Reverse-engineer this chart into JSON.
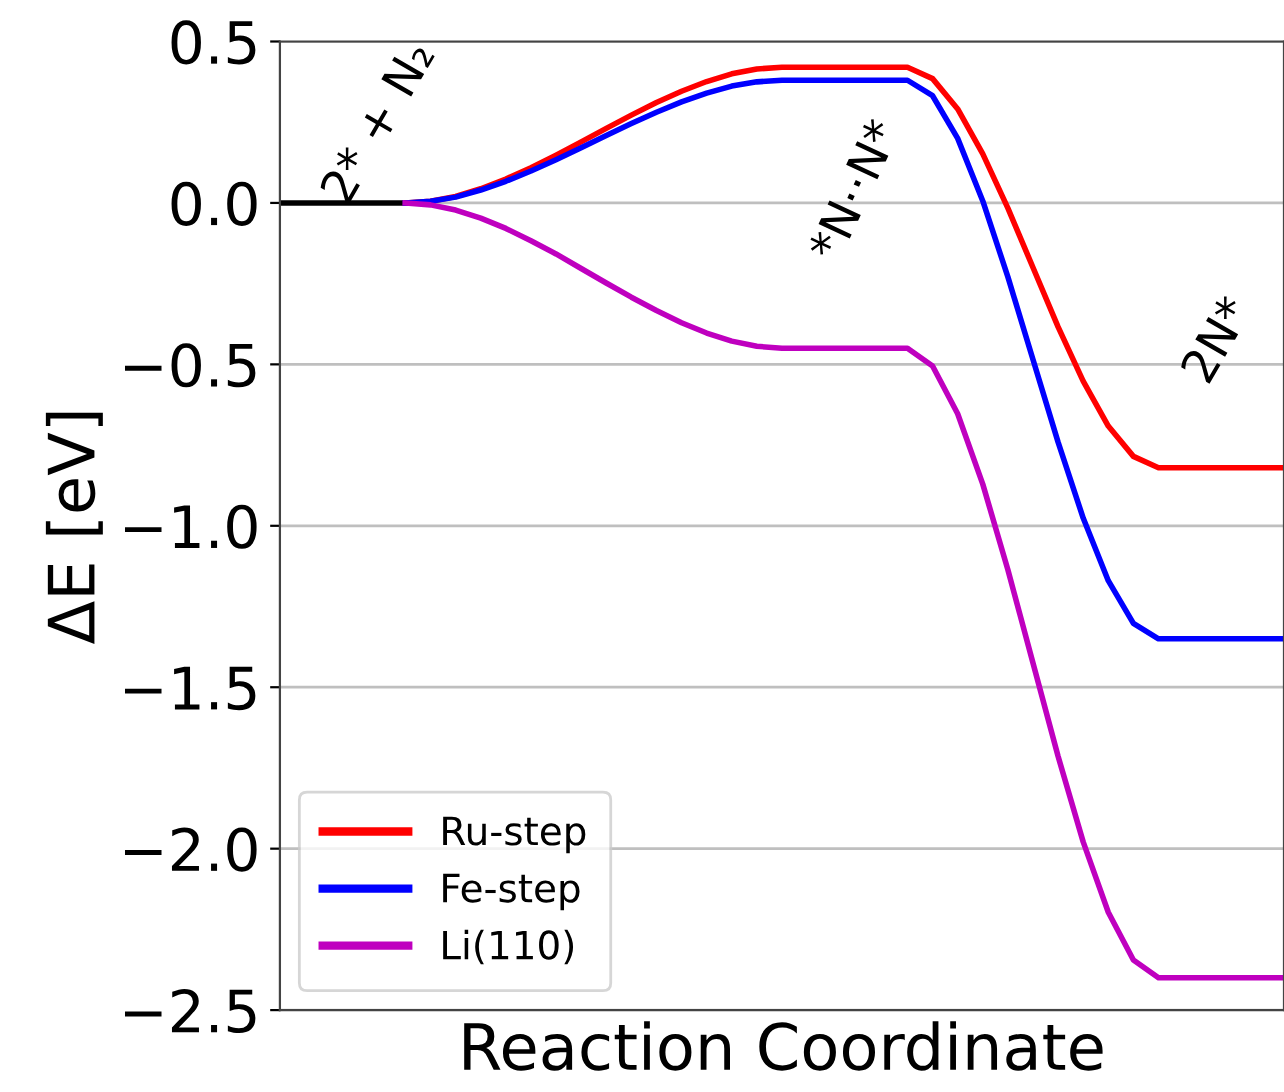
{
  "chart_data": {
    "type": "line",
    "xlabel": "Reaction Coordinate",
    "ylabel": "ΔE [eV]",
    "categories": [
      null,
      null,
      null,
      null,
      null,
      null,
      null,
      null,
      null,
      null,
      null,
      null,
      null,
      null,
      null,
      null,
      null,
      null,
      null,
      null,
      null,
      null,
      null,
      null,
      null,
      null,
      null,
      null,
      null,
      null,
      null,
      null,
      null,
      null,
      null,
      null,
      null,
      null,
      null,
      null,
      null
    ],
    "ylim": [
      -2.5,
      0.5
    ],
    "yticks": [
      {
        "value": 0.5,
        "label": "0.5"
      },
      {
        "value": 0.0,
        "label": "0.0"
      },
      {
        "value": -0.5,
        "label": "−0.5"
      },
      {
        "value": -1.0,
        "label": "−1.0"
      },
      {
        "value": -1.5,
        "label": "−1.5"
      },
      {
        "value": -2.0,
        "label": "−2.0"
      },
      {
        "value": -2.5,
        "label": "−2.5"
      }
    ],
    "tick_labels": "y",
    "grid": "y",
    "legend": "bottom left",
    "series": [
      {
        "color": "#000000",
        "values": [
          0,
          0,
          0,
          0,
          0,
          0,
          null,
          null,
          null,
          null,
          null,
          null,
          null,
          null,
          null,
          null,
          null,
          null,
          null,
          null,
          null,
          null,
          null,
          null,
          null,
          null,
          null,
          null,
          null,
          null,
          null,
          null,
          null,
          null,
          null,
          null,
          null,
          null,
          null,
          null,
          null
        ]
      },
      {
        "name": "Ru-step",
        "color": "#ff0000",
        "values": [
          null,
          null,
          null,
          null,
          null,
          0,
          0.005,
          0.02,
          0.044,
          0.074,
          0.109,
          0.148,
          0.189,
          0.231,
          0.272,
          0.311,
          0.346,
          0.376,
          0.4,
          0.415,
          0.42,
          0.42,
          0.42,
          0.42,
          0.42,
          0.42,
          0.385,
          0.291,
          0.152,
          -0.016,
          -0.2,
          -0.384,
          -0.552,
          -0.691,
          -0.785,
          -0.82,
          -0.82,
          -0.82,
          -0.82,
          -0.82,
          -0.82
        ]
      },
      {
        "name": "Fe-step",
        "color": "#0000ff",
        "values": [
          null,
          null,
          null,
          null,
          null,
          0,
          0.005,
          0.018,
          0.04,
          0.067,
          0.099,
          0.134,
          0.171,
          0.209,
          0.246,
          0.281,
          0.313,
          0.34,
          0.362,
          0.375,
          0.38,
          0.38,
          0.38,
          0.38,
          0.38,
          0.38,
          0.332,
          0.2,
          0.006,
          -0.229,
          -0.485,
          -0.741,
          -0.976,
          -1.17,
          -1.302,
          -1.35,
          -1.35,
          -1.35,
          -1.35,
          -1.35,
          -1.35
        ]
      },
      {
        "name": "Li(110)",
        "color": "#bf00bf",
        "values": [
          null,
          null,
          null,
          null,
          null,
          0,
          -0.006,
          -0.022,
          -0.047,
          -0.079,
          -0.117,
          -0.158,
          -0.203,
          -0.248,
          -0.292,
          -0.333,
          -0.371,
          -0.403,
          -0.428,
          -0.444,
          -0.45,
          -0.45,
          -0.45,
          -0.45,
          -0.45,
          -0.45,
          -0.505,
          -0.653,
          -0.871,
          -1.136,
          -1.425,
          -1.714,
          -1.979,
          -2.197,
          -2.345,
          -2.4,
          -2.4,
          -2.4,
          -2.4,
          -2.4,
          -2.4
        ]
      }
    ],
    "annotations": [
      "2* + N₂",
      "*N··N*",
      "2N*"
    ]
  }
}
